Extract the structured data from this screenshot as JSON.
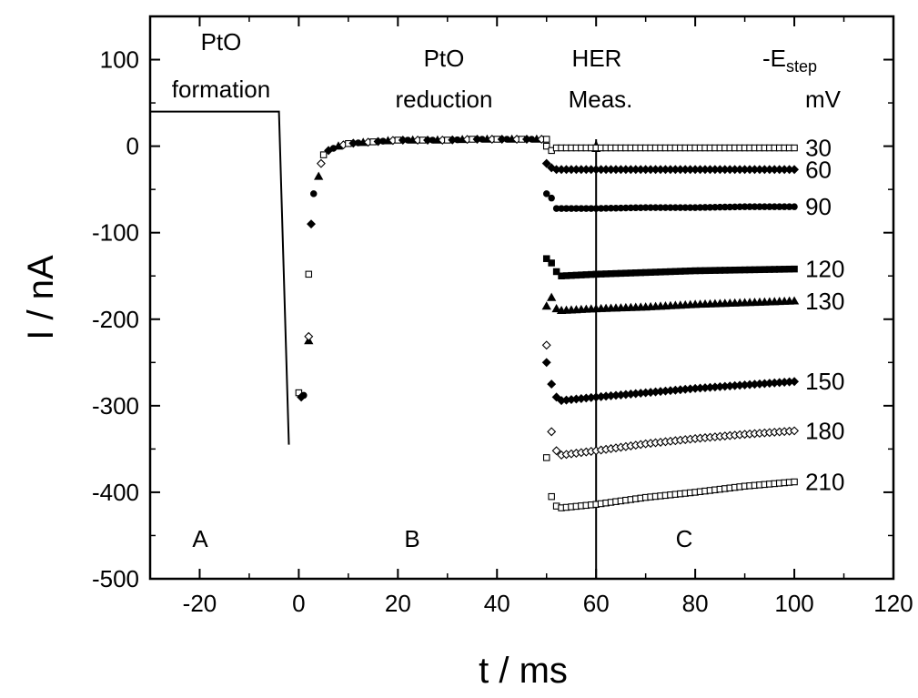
{
  "chart_data": {
    "type": "scatter",
    "xlabel": "t / ms",
    "ylabel": "I / nA",
    "xlim": [
      -30,
      120
    ],
    "ylim": [
      -500,
      150
    ],
    "x_ticks": [
      -20,
      0,
      20,
      40,
      60,
      80,
      100,
      120
    ],
    "y_ticks": [
      100,
      0,
      -100,
      -200,
      -300,
      -400,
      -500
    ],
    "x_tick_labels": [
      "-20",
      "0",
      "20",
      "40",
      "60",
      "80",
      "100",
      "120"
    ],
    "y_tick_labels": [
      "100",
      "0",
      "-100",
      "-200",
      "-300",
      "-400",
      "-500"
    ],
    "grid": false,
    "potential_program_points": [
      [
        -30,
        40
      ],
      [
        -4,
        40
      ],
      [
        -2,
        -345
      ]
    ],
    "her_measurement_time": 60,
    "pto_reduction_transient": {
      "points": [
        [
          0,
          -285
        ],
        [
          0.5,
          -290
        ],
        [
          1,
          -288
        ],
        [
          2,
          -225
        ],
        [
          2,
          -220
        ],
        [
          2,
          -148
        ],
        [
          2.5,
          -90
        ],
        [
          3,
          -55
        ],
        [
          4,
          -35
        ],
        [
          4.5,
          -20
        ],
        [
          5,
          -10
        ],
        [
          6,
          -5
        ],
        [
          8,
          0
        ],
        [
          10,
          3
        ],
        [
          15,
          5
        ],
        [
          20,
          7
        ],
        [
          25,
          7
        ],
        [
          30,
          7
        ],
        [
          35,
          8
        ],
        [
          40,
          8
        ],
        [
          45,
          8
        ],
        [
          50,
          8
        ]
      ]
    },
    "series": [
      {
        "estep_label": "30",
        "marker": "open-square",
        "values": [
          [
            50,
            0
          ],
          [
            51,
            -5
          ],
          [
            52,
            -2
          ],
          [
            60,
            -2
          ],
          [
            70,
            -2
          ],
          [
            80,
            -2
          ],
          [
            90,
            -2
          ],
          [
            100,
            -2
          ]
        ]
      },
      {
        "estep_label": "60",
        "marker": "filled-diamond",
        "values": [
          [
            50,
            -20
          ],
          [
            51,
            -25
          ],
          [
            52,
            -27
          ],
          [
            60,
            -27
          ],
          [
            70,
            -27
          ],
          [
            80,
            -27
          ],
          [
            90,
            -27
          ],
          [
            100,
            -27
          ]
        ]
      },
      {
        "estep_label": "90",
        "marker": "filled-circle",
        "values": [
          [
            50,
            -55
          ],
          [
            51,
            -60
          ],
          [
            52,
            -72
          ],
          [
            60,
            -72
          ],
          [
            70,
            -71
          ],
          [
            80,
            -71
          ],
          [
            90,
            -70
          ],
          [
            100,
            -70
          ]
        ]
      },
      {
        "estep_label": "120",
        "marker": "filled-square",
        "values": [
          [
            50,
            -130
          ],
          [
            51,
            -135
          ],
          [
            52,
            -145
          ],
          [
            53,
            -150
          ],
          [
            60,
            -148
          ],
          [
            70,
            -146
          ],
          [
            80,
            -144
          ],
          [
            90,
            -143
          ],
          [
            100,
            -142
          ]
        ]
      },
      {
        "estep_label": "130",
        "marker": "filled-triangle",
        "values": [
          [
            50,
            -185
          ],
          [
            51,
            -175
          ],
          [
            52,
            -188
          ],
          [
            53,
            -190
          ],
          [
            60,
            -188
          ],
          [
            70,
            -186
          ],
          [
            80,
            -183
          ],
          [
            90,
            -181
          ],
          [
            100,
            -179
          ]
        ]
      },
      {
        "estep_label": "150",
        "marker": "filled-diamond",
        "values": [
          [
            50,
            -250
          ],
          [
            51,
            -275
          ],
          [
            52,
            -290
          ],
          [
            53,
            -294
          ],
          [
            60,
            -290
          ],
          [
            70,
            -285
          ],
          [
            80,
            -280
          ],
          [
            90,
            -276
          ],
          [
            100,
            -272
          ]
        ]
      },
      {
        "estep_label": "180",
        "marker": "open-diamond",
        "values": [
          [
            50,
            -230
          ],
          [
            51,
            -330
          ],
          [
            52,
            -352
          ],
          [
            53,
            -357
          ],
          [
            60,
            -352
          ],
          [
            70,
            -344
          ],
          [
            80,
            -338
          ],
          [
            90,
            -333
          ],
          [
            100,
            -329
          ]
        ]
      },
      {
        "estep_label": "210",
        "marker": "open-square",
        "values": [
          [
            50,
            -360
          ],
          [
            51,
            -405
          ],
          [
            52,
            -416
          ],
          [
            53,
            -418
          ],
          [
            60,
            -414
          ],
          [
            70,
            -406
          ],
          [
            80,
            -400
          ],
          [
            90,
            -393
          ],
          [
            100,
            -388
          ]
        ]
      }
    ],
    "annotations": {
      "pto_formation_line1": "PtO",
      "pto_formation_line2": "formation",
      "pto_reduction_line1": "PtO",
      "pto_reduction_line2": "reduction",
      "her_line1": "HER",
      "her_line2": "Meas.",
      "estep_prefix": "-E",
      "estep_sub": "step",
      "estep_unit": "mV",
      "region_a": "A",
      "region_b": "B",
      "region_c": "C"
    }
  }
}
